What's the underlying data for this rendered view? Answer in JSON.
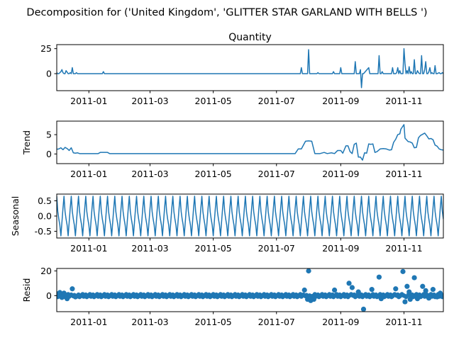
{
  "title": "Decomposition for ('United Kingdom', 'GLITTER STAR GARLAND WITH BELLS ')",
  "colors": {
    "line": "#1f77b4",
    "marker": "#1f77b4"
  },
  "chart_data": [
    {
      "type": "line",
      "title": "Quantity",
      "ylabel": "",
      "ylim": [
        -17,
        29
      ],
      "yticks": [
        0,
        25
      ],
      "xlim": [
        "2010-12-01",
        "2011-12-09"
      ],
      "xticks": [
        "2011-01",
        "2011-03",
        "2011-05",
        "2011-07",
        "2011-09",
        "2011-11"
      ],
      "grid": false,
      "series": [
        {
          "x": [
            "2010-12-01",
            "2010-12-02",
            "2010-12-03",
            "2010-12-05",
            "2010-12-06",
            "2010-12-07",
            "2010-12-08",
            "2010-12-09",
            "2010-12-10",
            "2010-12-12",
            "2010-12-13",
            "2010-12-14",
            "2010-12-15",
            "2010-12-16",
            "2010-12-17",
            "2010-12-19",
            "2010-12-20",
            "2010-12-21",
            "2011-01-14",
            "2011-01-15",
            "2011-01-16",
            "2011-07-24",
            "2011-07-25",
            "2011-07-26",
            "2011-07-31",
            "2011-08-01",
            "2011-08-02",
            "2011-08-09",
            "2011-08-10",
            "2011-08-11",
            "2011-08-24",
            "2011-08-25",
            "2011-08-26",
            "2011-08-31",
            "2011-09-01",
            "2011-09-02",
            "2011-09-14",
            "2011-09-15",
            "2011-09-16",
            "2011-09-19",
            "2011-09-20",
            "2011-09-21",
            "2011-09-22",
            "2011-09-23",
            "2011-09-28",
            "2011-09-29",
            "2011-09-30",
            "2011-10-07",
            "2011-10-08",
            "2011-10-09",
            "2011-10-10",
            "2011-10-11",
            "2011-10-12",
            "2011-10-20",
            "2011-10-21",
            "2011-10-22",
            "2011-10-24",
            "2011-10-25",
            "2011-10-26",
            "2011-10-27",
            "2011-10-28",
            "2011-10-29",
            "2011-10-31",
            "2011-11-01",
            "2011-11-02",
            "2011-11-03",
            "2011-11-04",
            "2011-11-05",
            "2011-11-06",
            "2011-11-07",
            "2011-11-08",
            "2011-11-09",
            "2011-11-10",
            "2011-11-11",
            "2011-11-12",
            "2011-11-13",
            "2011-11-14",
            "2011-11-15",
            "2011-11-16",
            "2011-11-17",
            "2011-11-18",
            "2011-11-19",
            "2011-11-20",
            "2011-11-21",
            "2011-11-22",
            "2011-11-23",
            "2011-11-24",
            "2011-11-25",
            "2011-11-26",
            "2011-11-27",
            "2011-11-28",
            "2011-11-29",
            "2011-11-30",
            "2011-12-01",
            "2011-12-02",
            "2011-12-03",
            "2011-12-05",
            "2011-12-06",
            "2011-12-07",
            "2011-12-08",
            "2011-12-09"
          ],
          "values": [
            1,
            0,
            0,
            2,
            4,
            1,
            0,
            0,
            3,
            0,
            0,
            1,
            0,
            6,
            0,
            0,
            1,
            0,
            0,
            2,
            0,
            0,
            6,
            0,
            0,
            24,
            0,
            0,
            1,
            0,
            0,
            2,
            0,
            0,
            6,
            0,
            0,
            12,
            0,
            0,
            4,
            -14,
            0,
            0,
            6,
            0,
            0,
            0,
            18,
            0,
            0,
            2,
            0,
            0,
            6,
            0,
            0,
            1,
            6,
            0,
            3,
            0,
            0,
            25,
            10,
            0,
            3,
            0,
            7,
            0,
            2,
            0,
            0,
            14,
            0,
            0,
            3,
            1,
            0,
            0,
            18,
            0,
            0,
            4,
            12,
            0,
            0,
            2,
            6,
            0,
            1,
            0,
            0,
            8,
            0,
            0,
            1,
            0,
            0,
            1,
            0
          ]
        }
      ]
    },
    {
      "type": "line",
      "title": "",
      "ylabel": "Trend",
      "ylim": [
        -2.5,
        8.5
      ],
      "yticks": [
        0,
        5
      ],
      "xlim": [
        "2010-12-01",
        "2011-12-09"
      ],
      "xticks": [
        "2011-01",
        "2011-03",
        "2011-05",
        "2011-07",
        "2011-09",
        "2011-11"
      ],
      "grid": false,
      "series": [
        {
          "x": [
            "2010-12-01",
            "2010-12-03",
            "2010-12-05",
            "2010-12-07",
            "2010-12-09",
            "2010-12-11",
            "2010-12-13",
            "2010-12-15",
            "2010-12-17",
            "2010-12-19",
            "2010-12-21",
            "2010-12-23",
            "2011-01-10",
            "2011-01-12",
            "2011-01-19",
            "2011-01-21",
            "2011-07-19",
            "2011-07-22",
            "2011-07-25",
            "2011-07-29",
            "2011-08-01",
            "2011-08-04",
            "2011-08-07",
            "2011-08-12",
            "2011-08-16",
            "2011-08-19",
            "2011-08-23",
            "2011-08-26",
            "2011-08-29",
            "2011-09-01",
            "2011-09-03",
            "2011-09-06",
            "2011-09-08",
            "2011-09-10",
            "2011-09-12",
            "2011-09-14",
            "2011-09-16",
            "2011-09-18",
            "2011-09-20",
            "2011-09-22",
            "2011-09-24",
            "2011-09-26",
            "2011-09-28",
            "2011-09-30",
            "2011-10-02",
            "2011-10-04",
            "2011-10-06",
            "2011-10-09",
            "2011-10-12",
            "2011-10-15",
            "2011-10-18",
            "2011-10-20",
            "2011-10-22",
            "2011-10-24",
            "2011-10-26",
            "2011-10-28",
            "2011-10-29",
            "2011-10-30",
            "2011-10-31",
            "2011-11-01",
            "2011-11-02",
            "2011-11-03",
            "2011-11-05",
            "2011-11-07",
            "2011-11-09",
            "2011-11-11",
            "2011-11-13",
            "2011-11-15",
            "2011-11-17",
            "2011-11-19",
            "2011-11-21",
            "2011-11-23",
            "2011-11-25",
            "2011-11-27",
            "2011-11-29",
            "2011-12-01",
            "2011-12-03",
            "2011-12-05",
            "2011-12-07",
            "2011-12-09"
          ],
          "values": [
            1.2,
            1.3,
            1.6,
            1.1,
            1.7,
            1.4,
            0.9,
            1.6,
            0.3,
            0.2,
            0.3,
            0.1,
            0.1,
            0.4,
            0.4,
            0.1,
            0.1,
            1.3,
            1.3,
            3.3,
            3.4,
            3.3,
            0.1,
            0.1,
            0.4,
            0.1,
            0.3,
            0.1,
            0.9,
            0.9,
            0.2,
            2.1,
            2.1,
            0.6,
            0.1,
            2.5,
            2.8,
            -0.8,
            -0.8,
            -1.6,
            0.3,
            0.2,
            2.6,
            2.5,
            2.6,
            0.4,
            0.6,
            1.3,
            1.4,
            1.3,
            1.0,
            1.1,
            3.0,
            3.8,
            5.0,
            5.2,
            6.4,
            6.8,
            7.2,
            7.6,
            4.1,
            3.8,
            3.2,
            3.1,
            2.8,
            1.6,
            1.7,
            4.2,
            4.8,
            5.1,
            5.4,
            4.7,
            3.9,
            4.0,
            3.7,
            2.3,
            2.0,
            1.3,
            1.1,
            1.0
          ]
        }
      ]
    },
    {
      "type": "line",
      "title": "",
      "ylabel": "Seasonal",
      "ylim": [
        -0.72,
        0.72
      ],
      "yticks": [
        -0.5,
        0.0,
        0.5
      ],
      "xlim": [
        "2010-12-01",
        "2011-12-09"
      ],
      "xticks": [
        "2011-01",
        "2011-03",
        "2011-05",
        "2011-07",
        "2011-09",
        "2011-11"
      ],
      "grid": false,
      "period_days": 7,
      "pattern": [
        0.65,
        0.15,
        -0.1,
        -0.3,
        -0.65,
        -0.2,
        0.25
      ]
    },
    {
      "type": "scatter",
      "title": "",
      "ylabel": "Resid",
      "ylim": [
        -13,
        22
      ],
      "yticks": [
        0,
        20
      ],
      "xlim": [
        "2010-12-01",
        "2011-12-09"
      ],
      "xticks": [
        "2011-01",
        "2011-03",
        "2011-05",
        "2011-07",
        "2011-09",
        "2011-11"
      ],
      "grid": false,
      "baseline": 0,
      "outliers": [
        {
          "x": "2010-12-01",
          "y": 1.5
        },
        {
          "x": "2010-12-04",
          "y": 2.5
        },
        {
          "x": "2010-12-06",
          "y": -1.5
        },
        {
          "x": "2010-12-08",
          "y": 2.0
        },
        {
          "x": "2010-12-11",
          "y": -2.5
        },
        {
          "x": "2010-12-16",
          "y": 5.5
        },
        {
          "x": "2010-12-19",
          "y": -1.0
        },
        {
          "x": "2011-07-28",
          "y": 4.5
        },
        {
          "x": "2011-08-01",
          "y": 20.0
        },
        {
          "x": "2011-07-31",
          "y": -3.0
        },
        {
          "x": "2011-08-03",
          "y": -4.0
        },
        {
          "x": "2011-08-06",
          "y": -3.0
        },
        {
          "x": "2011-08-26",
          "y": 4.5
        },
        {
          "x": "2011-09-09",
          "y": 10.0
        },
        {
          "x": "2011-09-12",
          "y": 6.5
        },
        {
          "x": "2011-09-18",
          "y": 3.0
        },
        {
          "x": "2011-09-23",
          "y": -11.0
        },
        {
          "x": "2011-10-01",
          "y": 5.0
        },
        {
          "x": "2011-10-08",
          "y": 15.0
        },
        {
          "x": "2011-10-10",
          "y": -2.5
        },
        {
          "x": "2011-10-24",
          "y": 5.5
        },
        {
          "x": "2011-10-31",
          "y": 19.5
        },
        {
          "x": "2011-11-02",
          "y": -5.0
        },
        {
          "x": "2011-11-04",
          "y": 7.5
        },
        {
          "x": "2011-11-06",
          "y": 3.0
        },
        {
          "x": "2011-11-07",
          "y": -3.0
        },
        {
          "x": "2011-11-11",
          "y": 14.5
        },
        {
          "x": "2011-11-14",
          "y": -2.5
        },
        {
          "x": "2011-11-19",
          "y": 7.5
        },
        {
          "x": "2011-11-22",
          "y": 4.0
        },
        {
          "x": "2011-11-25",
          "y": -2.0
        },
        {
          "x": "2011-11-29",
          "y": 5.0
        },
        {
          "x": "2011-12-03",
          "y": -1.0
        },
        {
          "x": "2011-12-06",
          "y": 2.0
        }
      ]
    }
  ]
}
